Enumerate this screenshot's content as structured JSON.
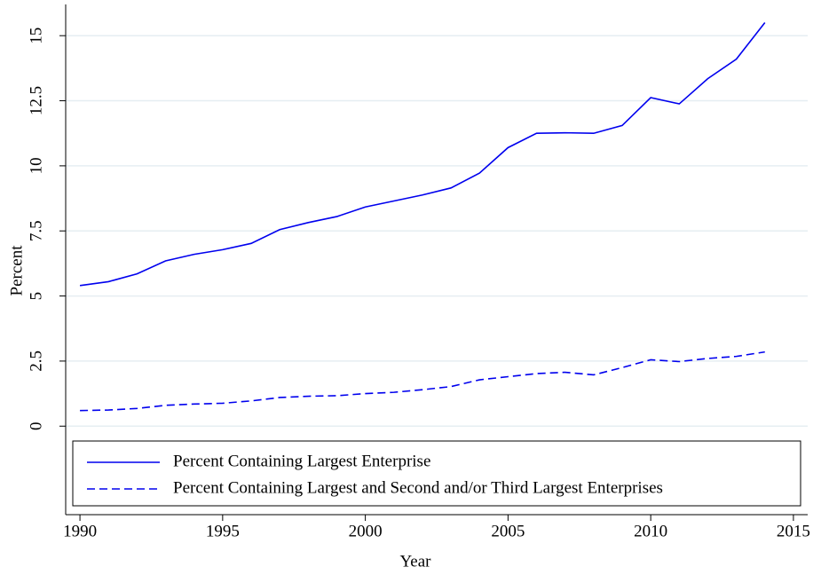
{
  "chart_data": {
    "type": "line",
    "x_label": "Year",
    "y_label": "Percent",
    "x": [
      1990,
      1991,
      1992,
      1993,
      1994,
      1995,
      1996,
      1997,
      1998,
      1999,
      2000,
      2001,
      2002,
      2003,
      2004,
      2005,
      2006,
      2007,
      2008,
      2009,
      2010,
      2011,
      2012,
      2013,
      2014
    ],
    "series": [
      {
        "name": "Percent Containing Largest Enterprise",
        "color": "#0000ee",
        "line_style": "solid",
        "values": [
          5.4,
          5.55,
          5.85,
          6.35,
          6.6,
          6.78,
          7.02,
          7.55,
          7.82,
          8.05,
          8.42,
          8.65,
          8.88,
          9.15,
          9.72,
          10.7,
          11.25,
          11.27,
          11.25,
          11.55,
          12.62,
          12.38,
          13.35,
          14.1,
          15.5
        ]
      },
      {
        "name": "Percent Containing Largest and Second and/or Third Largest Enterprises",
        "color": "#0000ee",
        "line_style": "dashed",
        "values": [
          0.6,
          0.62,
          0.68,
          0.8,
          0.85,
          0.88,
          0.97,
          1.1,
          1.15,
          1.17,
          1.25,
          1.3,
          1.4,
          1.52,
          1.78,
          1.9,
          2.02,
          2.07,
          1.97,
          2.25,
          2.55,
          2.48,
          2.6,
          2.68,
          2.85
        ]
      }
    ],
    "xlim": [
      1989.5,
      2015.5
    ],
    "xticks": [
      1990,
      1995,
      2000,
      2005,
      2010,
      2015
    ],
    "ylim": [
      -3.4,
      16.2
    ],
    "yticks": [
      0,
      2.5,
      5,
      7.5,
      10,
      12.5,
      15
    ],
    "grid": true
  }
}
